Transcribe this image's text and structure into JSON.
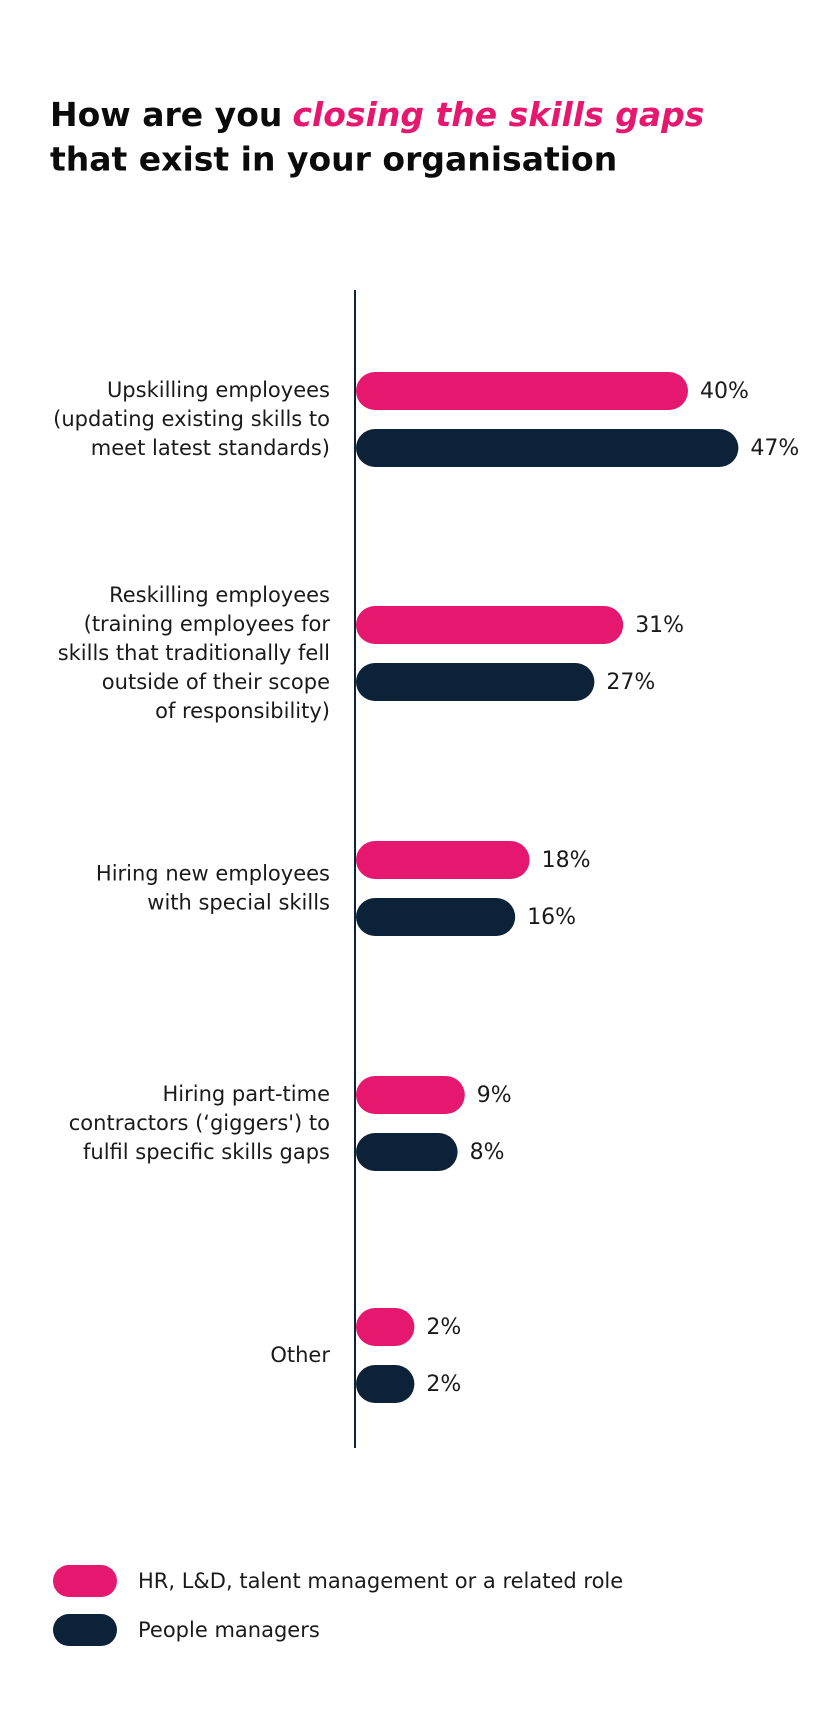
{
  "chart_data": {
    "type": "bar",
    "orientation": "horizontal",
    "title_parts": [
      "How are you",
      "closing the skills gaps",
      "that exist in your organisation"
    ],
    "categories": [
      [
        "Upskilling employees",
        "(updating existing skills to",
        "meet latest standards)"
      ],
      [
        "Reskilling employees",
        "(training employees for",
        "skills that traditionally fell",
        "outside of their scope",
        "of responsibility)"
      ],
      [
        "Hiring new employees",
        "with special skills"
      ],
      [
        "Hiring part-time",
        "contractors (‘giggers') to",
        "fulfil specific skills gaps"
      ],
      [
        "Other"
      ]
    ],
    "series": [
      {
        "name": "HR, L&D, talent management or a related role",
        "color": "#e5176f",
        "values": [
          40,
          31,
          18,
          9,
          2
        ],
        "value_labels": [
          "40%",
          "31%",
          "18%",
          "9%",
          "2%"
        ]
      },
      {
        "name": "People managers",
        "color": "#0b2239",
        "values": [
          47,
          27,
          16,
          8,
          2
        ],
        "value_labels": [
          "47%",
          "27%",
          "16%",
          "8%",
          "2%"
        ]
      }
    ],
    "legend": "bottom-left"
  }
}
